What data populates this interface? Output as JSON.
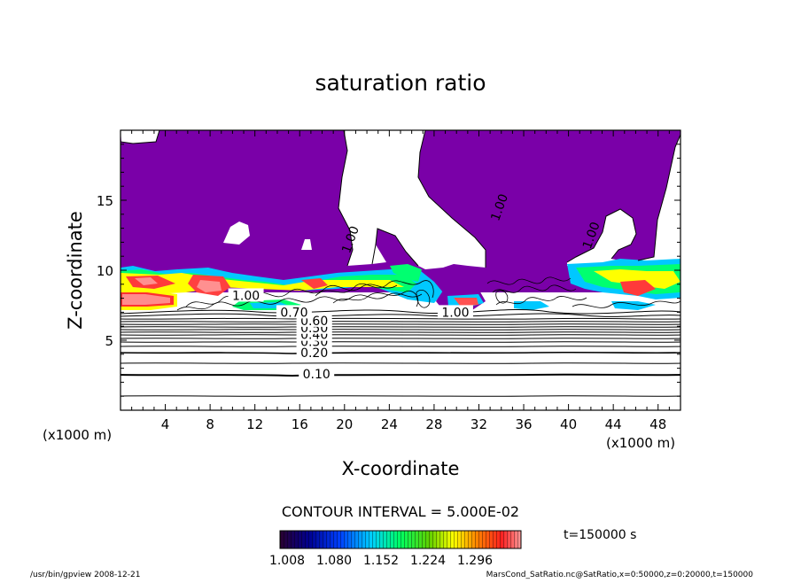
{
  "chart_data": {
    "type": "contour",
    "title": "saturation ratio",
    "xlabel": "X-coordinate",
    "ylabel": "Z-coordinate",
    "x_unit_left": "(x1000 m)",
    "x_unit_right": "(x1000 m)",
    "xlim": [
      0,
      50
    ],
    "ylim": [
      0,
      20
    ],
    "x_ticks": [
      4,
      8,
      12,
      16,
      20,
      24,
      28,
      32,
      36,
      40,
      44,
      48
    ],
    "y_ticks": [
      5,
      10,
      15
    ],
    "contour_labels": [
      {
        "text": "0.10",
        "x": 17.5,
        "y": 2.6
      },
      {
        "text": "0.20",
        "x": 17.3,
        "y": 4.1
      },
      {
        "text": "0.30",
        "x": 17.3,
        "y": 4.9
      },
      {
        "text": "0.40",
        "x": 17.3,
        "y": 5.4
      },
      {
        "text": "0.50",
        "x": 17.3,
        "y": 5.9
      },
      {
        "text": "0.60",
        "x": 17.3,
        "y": 6.4
      },
      {
        "text": "0.70",
        "x": 15.5,
        "y": 7.0
      },
      {
        "text": "1.00",
        "x": 20.5,
        "y": 12.2
      },
      {
        "text": "1.00",
        "x": 33.8,
        "y": 14.5
      },
      {
        "text": "1.00",
        "x": 42.0,
        "y": 12.5
      },
      {
        "text": "1.00",
        "x": 29.9,
        "y": 7.0
      },
      {
        "text": "1.00",
        "x": 11.2,
        "y": 8.2
      }
    ],
    "contour_interval_label": "CONTOUR INTERVAL = 5.000E-02",
    "colorbar": {
      "tick_labels": [
        "1.008",
        "1.080",
        "1.152",
        "1.224",
        "1.296"
      ],
      "colors": [
        "#3a0040",
        "#000080",
        "#0000ff",
        "#00c0ff",
        "#00ff80",
        "#40c000",
        "#ffff00",
        "#ff8000",
        "#ff2020",
        "#ff9090"
      ]
    },
    "time_label": "t=150000 s",
    "supersat_fill_color": "#7a00a8",
    "footer_left": "/usr/bin/gpview  2008-12-21",
    "footer_right": "MarsCond_SatRatio.nc@SatRatio,x=0:50000,z=0:20000,t=150000"
  }
}
